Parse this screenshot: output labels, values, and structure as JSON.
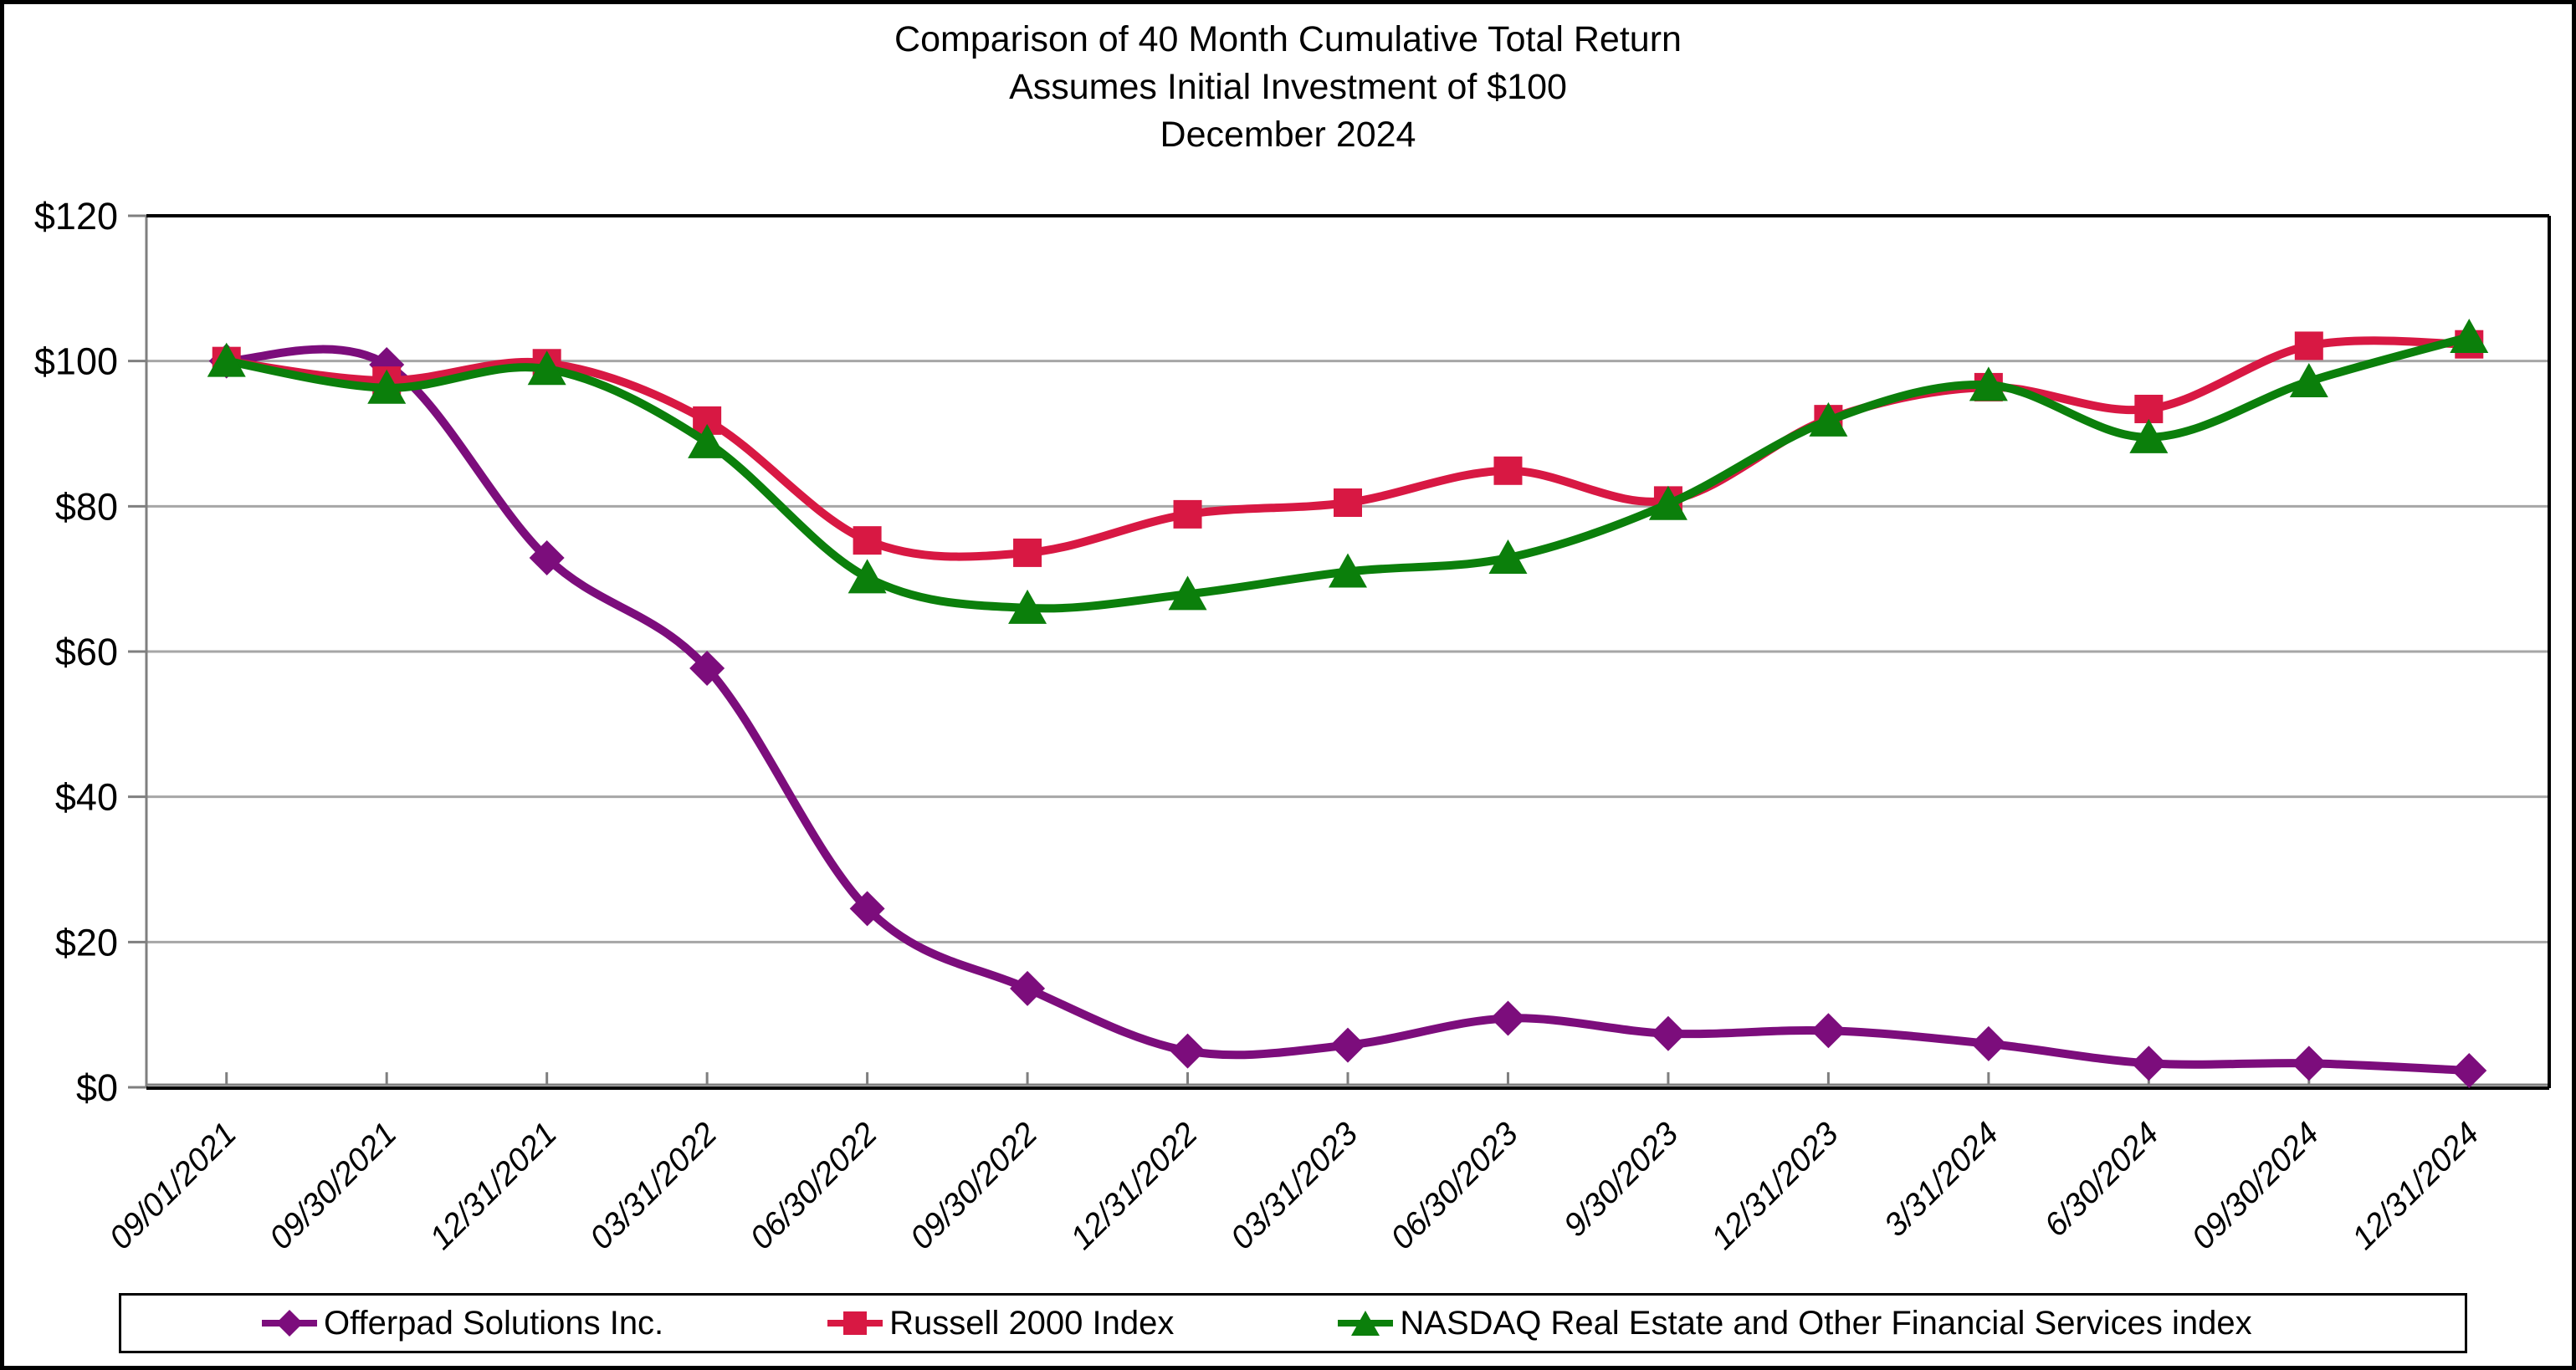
{
  "title": {
    "line1": "Comparison of 40 Month Cumulative Total Return",
    "line2": "Assumes Initial Investment of $100",
    "line3": "December 2024"
  },
  "chart_data": {
    "type": "line",
    "title": "Comparison of 40 Month Cumulative Total Return",
    "subtitle": "Assumes Initial Investment of $100",
    "date_label": "December 2024",
    "x_labels": [
      "09/01/2021",
      "09/30/2021",
      "12/31/2021",
      "03/31/2022",
      "06/30/2022",
      "09/30/2022",
      "12/31/2022",
      "03/31/2023",
      "06/30/2023",
      "9/30/2023",
      "12/31/2023",
      "3/31/2024",
      "6/30/2024",
      "09/30/2024",
      "12/31/2024"
    ],
    "y_tick_labels": [
      "$0",
      "$20",
      "$40",
      "$60",
      "$80",
      "$100",
      "$120"
    ],
    "y_tick_values": [
      0,
      20,
      40,
      60,
      80,
      100,
      120
    ],
    "ylim": [
      0,
      120
    ],
    "grid": "horizontal-gridlines-on",
    "legend_position": "bottom",
    "line_style": "smoothed",
    "series": [
      {
        "name": "Offerpad Solutions Inc.",
        "marker": "diamond",
        "color": "#7C0D7C",
        "values": [
          100.0,
          99.5,
          72.9,
          57.7,
          24.6,
          13.6,
          5.0,
          5.8,
          9.5,
          7.4,
          7.8,
          6.0,
          3.3,
          3.3,
          2.3
        ]
      },
      {
        "name": "Russell 2000 Index",
        "marker": "square",
        "color": "#D81843",
        "values": [
          100.0,
          97.3,
          99.7,
          91.8,
          75.3,
          73.6,
          78.9,
          80.5,
          84.9,
          80.8,
          92.0,
          96.4,
          93.4,
          102.1,
          102.3
        ]
      },
      {
        "name": "NASDAQ Real Estate and Other Financial Services index",
        "marker": "triangle",
        "color": "#0B7F0B",
        "values": [
          100.0,
          96.3,
          98.9,
          88.8,
          70.2,
          66.0,
          67.9,
          71.0,
          72.9,
          80.3,
          91.8,
          96.7,
          89.5,
          97.2,
          103.3
        ]
      }
    ],
    "colors": {
      "axis_gray": "#7F7F7F",
      "gridline_gray": "#A6A6A6",
      "plot_border_black": "#000000",
      "text_black": "#000000"
    }
  }
}
